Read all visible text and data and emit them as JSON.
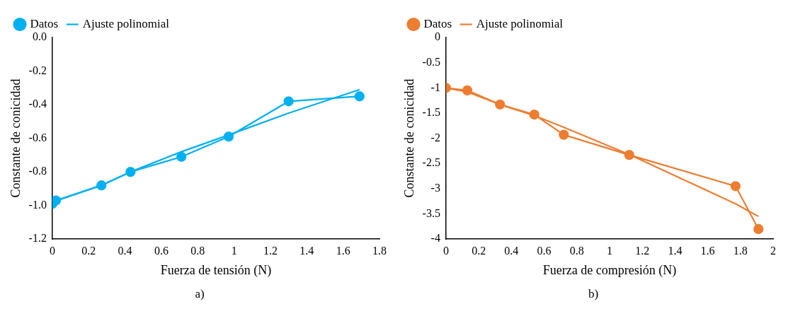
{
  "chart_data": [
    {
      "type": "line",
      "xlabel": "Fuerza de tensión (N)",
      "ylabel": "Constante de conicidad",
      "annotations": [
        "a)"
      ],
      "xlim": [
        0,
        1.8
      ],
      "xticks": [
        0,
        0.2,
        0.4,
        0.6,
        0.8,
        1,
        1.2,
        1.4,
        1.6,
        1.8
      ],
      "ylim": [
        -1.2,
        0
      ],
      "yticks": [
        {
          "value": -1.2,
          "label": "-1.2"
        },
        {
          "value": -1,
          "label": "-1.0"
        },
        {
          "value": -0.8,
          "label": "-0.8"
        },
        {
          "value": -0.6,
          "label": "-0.6"
        },
        {
          "value": -0.4,
          "label": "-0.4"
        },
        {
          "value": -0.2,
          "label": "-0.2"
        },
        {
          "value": 0,
          "label": "0.0"
        }
      ],
      "grid": false,
      "legend": "top left",
      "series": [
        {
          "name": "Datos",
          "color": "#00b0f0",
          "marker": "circle",
          "x": [
            0,
            0.02,
            0.27,
            0.43,
            0.71,
            0.97,
            1.3,
            1.69
          ],
          "values": [
            -0.99,
            -0.97,
            -0.88,
            -0.8,
            -0.71,
            -0.59,
            -0.38,
            -0.35
          ]
        },
        {
          "name": "Ajuste polinomial",
          "color": "#00b0f0",
          "marker": "none",
          "x": [
            0,
            0.27,
            0.43,
            0.71,
            0.97,
            1.3,
            1.69
          ],
          "values": [
            -0.98,
            -0.88,
            -0.8,
            -0.68,
            -0.58,
            -0.45,
            -0.31
          ]
        }
      ]
    },
    {
      "type": "line",
      "xlabel": "Fuerza de compresión (N)",
      "ylabel": "Constante de conicidad",
      "annotations": [
        "b)"
      ],
      "xlim": [
        0,
        2
      ],
      "xticks": [
        0,
        0.2,
        0.4,
        0.6,
        0.8,
        1,
        1.2,
        1.4,
        1.6,
        1.8,
        2
      ],
      "ylim": [
        -4,
        0
      ],
      "yticks": [
        -4,
        -3.5,
        -3,
        -2.5,
        -2,
        -1.5,
        -1,
        -0.5,
        0
      ],
      "grid": false,
      "legend": "top left",
      "series": [
        {
          "name": "Datos",
          "color": "#ed7d31",
          "marker": "circle",
          "x": [
            0,
            0.13,
            0.33,
            0.54,
            0.72,
            1.12,
            1.77,
            1.91
          ],
          "values": [
            -1,
            -1.05,
            -1.33,
            -1.53,
            -1.93,
            -2.33,
            -2.95,
            -3.8
          ]
        },
        {
          "name": "Ajuste polinomial",
          "color": "#ed7d31",
          "marker": "none",
          "x": [
            0,
            0.13,
            0.33,
            0.54,
            0.72,
            1.12,
            1.77,
            1.91
          ],
          "values": [
            -1,
            -1.08,
            -1.33,
            -1.55,
            -1.78,
            -2.32,
            -3.3,
            -3.55
          ]
        }
      ]
    }
  ]
}
